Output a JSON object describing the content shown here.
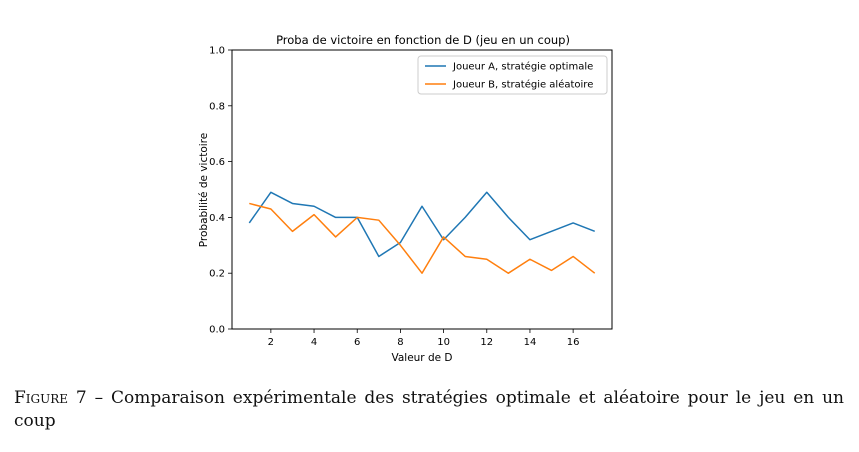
{
  "chart_data": {
    "type": "line",
    "title": "Proba de victoire en fonction de D (jeu en un coup)",
    "xlabel": "Valeur de D",
    "ylabel": "Probabilité de victoire",
    "xlim": [
      0.2,
      17.8
    ],
    "ylim": [
      0.0,
      1.0
    ],
    "xticks": [
      2,
      4,
      6,
      8,
      10,
      12,
      14,
      16
    ],
    "yticks": [
      0.0,
      0.2,
      0.4,
      0.6,
      0.8,
      1.0
    ],
    "xtick_labels": [
      "2",
      "4",
      "6",
      "8",
      "10",
      "12",
      "14",
      "16"
    ],
    "ytick_labels": [
      "0.0",
      "0.2",
      "0.4",
      "0.6",
      "0.8",
      "1.0"
    ],
    "x": [
      1,
      2,
      3,
      4,
      5,
      6,
      7,
      8,
      9,
      10,
      11,
      12,
      13,
      14,
      15,
      16,
      17
    ],
    "series": [
      {
        "name": "Joueur A, stratégie optimale",
        "color": "#1f77b4",
        "values": [
          0.38,
          0.49,
          0.45,
          0.44,
          0.4,
          0.4,
          0.26,
          0.31,
          0.44,
          0.32,
          0.4,
          0.49,
          0.4,
          0.32,
          0.35,
          0.38,
          0.35
        ]
      },
      {
        "name": "Joueur B, stratégie aléatoire",
        "color": "#ff7f0e",
        "values": [
          0.45,
          0.43,
          0.35,
          0.41,
          0.33,
          0.4,
          0.39,
          0.3,
          0.2,
          0.33,
          0.26,
          0.25,
          0.2,
          0.25,
          0.21,
          0.26,
          0.2
        ]
      }
    ],
    "grid": false,
    "legend_position": "top-right"
  },
  "caption": {
    "label": "Figure 7",
    "separator": " – ",
    "text": "Comparaison expérimentale des stratégies optimale et aléatoire pour le jeu en un coup"
  }
}
